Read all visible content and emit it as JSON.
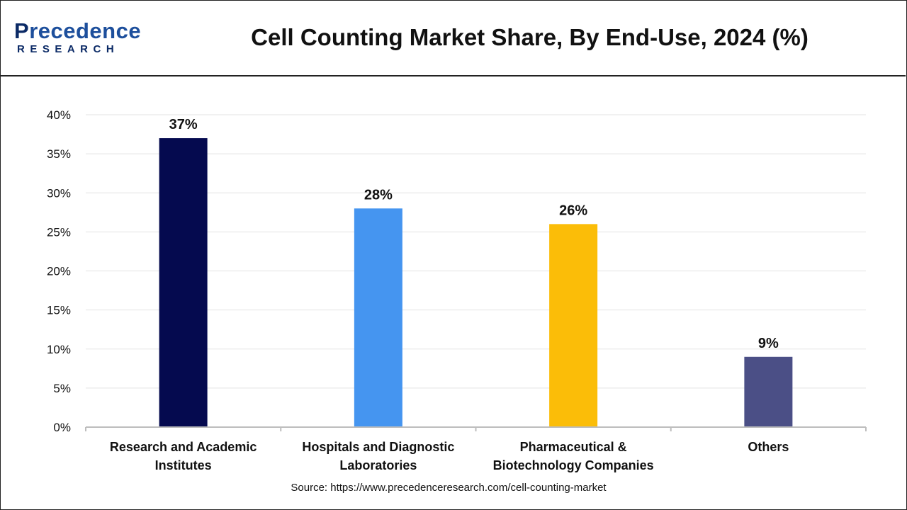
{
  "brand": {
    "logo_top": "recedence",
    "logo_initial": "P",
    "logo_bottom": "RESEARCH"
  },
  "chart_data": {
    "type": "bar",
    "title": "Cell Counting Market Share, By End-Use, 2024 (%)",
    "categories": [
      [
        "Research and Academic",
        "Institutes"
      ],
      [
        "Hospitals and Diagnostic",
        "Laboratories"
      ],
      [
        "Pharmaceutical &",
        "Biotechnology Companies"
      ],
      [
        "Others"
      ]
    ],
    "values": [
      37,
      28,
      26,
      9
    ],
    "value_labels": [
      "37%",
      "28%",
      "26%",
      "9%"
    ],
    "colors": [
      "#050a4f",
      "#4595f0",
      "#fbbd08",
      "#4b4f86"
    ],
    "ylim": [
      0,
      40
    ],
    "yticks": [
      0,
      5,
      10,
      15,
      20,
      25,
      30,
      35,
      40
    ],
    "ytick_labels": [
      "0%",
      "5%",
      "10%",
      "15%",
      "20%",
      "25%",
      "30%",
      "35%",
      "40%"
    ],
    "grid": true,
    "legend": "none"
  },
  "source": "Source: https://www.precedenceresearch.com/cell-counting-market"
}
